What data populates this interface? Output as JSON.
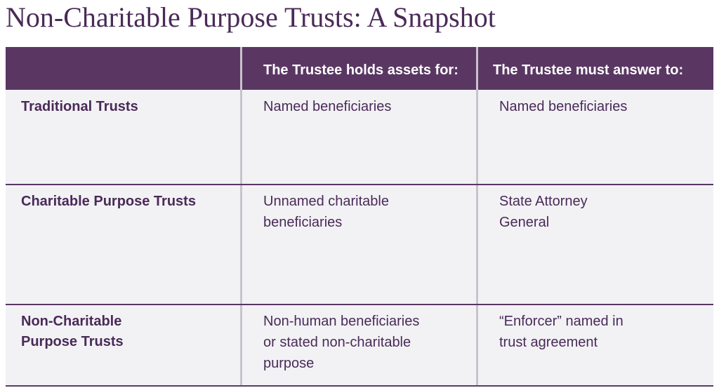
{
  "title": "Non-Charitable Purpose Trusts: A Snapshot",
  "headers": [
    "",
    "The Trustee holds assets for:",
    "The Trustee must answer to:"
  ],
  "rows": [
    {
      "label": [
        "Traditional Trusts"
      ],
      "holds": [
        "Named beneficiaries"
      ],
      "answer": [
        "Named beneficiaries"
      ]
    },
    {
      "label": [
        "Charitable Purpose Trusts"
      ],
      "holds": [
        "Unnamed charitable",
        "beneficiaries"
      ],
      "answer": [
        "State Attorney",
        "General"
      ]
    },
    {
      "label": [
        "Non-Charitable",
        "Purpose Trusts"
      ],
      "holds": [
        "Non-human beneficiaries",
        "or stated non-charitable",
        "purpose"
      ],
      "answer": [
        "“Enforcer” named in",
        "trust agreement"
      ]
    }
  ]
}
